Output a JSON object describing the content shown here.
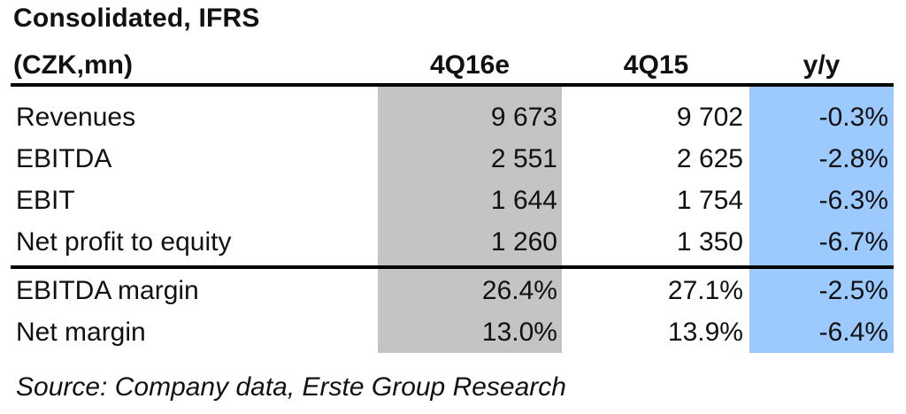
{
  "title": "Consolidated, IFRS",
  "unit": "(CZK,mn)",
  "columns": [
    "4Q16e",
    "4Q15",
    "y/y"
  ],
  "rows": [
    {
      "label": "Revenues",
      "values": [
        "9 673",
        "9 702",
        "-0.3%"
      ]
    },
    {
      "label": "EBITDA",
      "values": [
        "2 551",
        "2 625",
        "-2.8%"
      ]
    },
    {
      "label": "EBIT",
      "values": [
        "1 644",
        "1 754",
        "-6.3%"
      ]
    },
    {
      "label": "Net profit to equity",
      "values": [
        "1 260",
        "1 350",
        "-6.7%"
      ]
    },
    {
      "label": "EBITDA margin",
      "values": [
        "26.4%",
        "27.1%",
        "-2.5%"
      ]
    },
    {
      "label": "Net margin",
      "values": [
        "13.0%",
        "13.9%",
        "-6.4%"
      ]
    }
  ],
  "source": "Source: Company data, Erste Group Research",
  "colors": {
    "estimate_column_shade": "#c4c4c4",
    "yy_column_shade": "#9ccaff"
  }
}
